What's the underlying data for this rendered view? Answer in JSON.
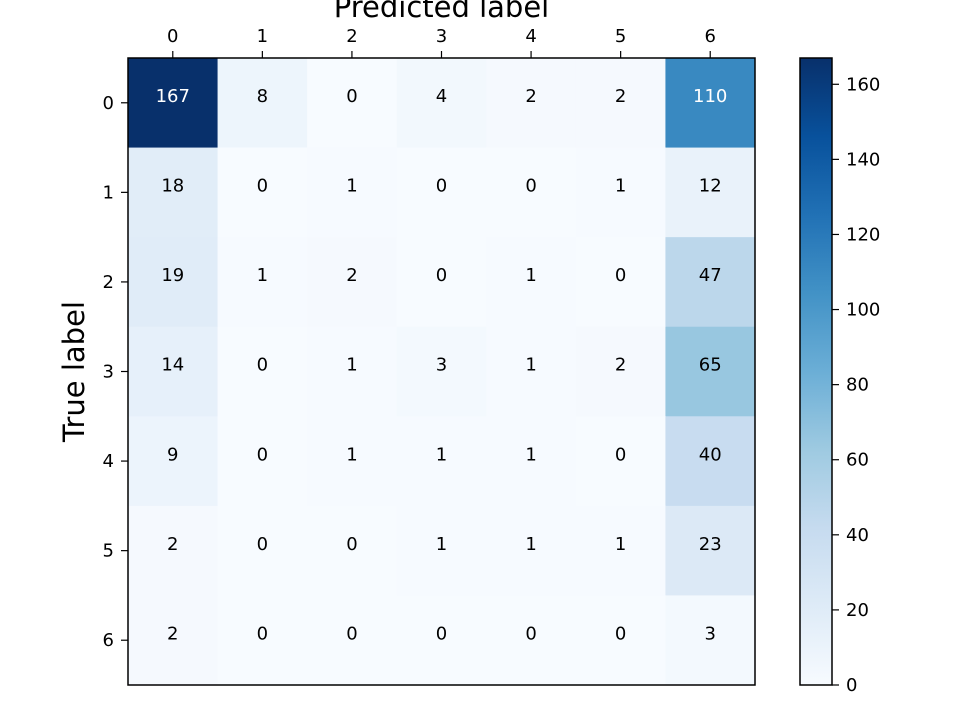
{
  "chart_data": {
    "type": "heatmap",
    "xlabel": "Predicted label",
    "ylabel": "True label",
    "x_categories": [
      "0",
      "1",
      "2",
      "3",
      "4",
      "5",
      "6"
    ],
    "y_categories": [
      "0",
      "1",
      "2",
      "3",
      "4",
      "5",
      "6"
    ],
    "values": [
      [
        167,
        8,
        0,
        4,
        2,
        2,
        110
      ],
      [
        18,
        0,
        1,
        0,
        0,
        1,
        12
      ],
      [
        19,
        1,
        2,
        0,
        1,
        0,
        47
      ],
      [
        14,
        0,
        1,
        3,
        1,
        2,
        65
      ],
      [
        9,
        0,
        1,
        1,
        1,
        0,
        40
      ],
      [
        2,
        0,
        0,
        1,
        1,
        1,
        23
      ],
      [
        2,
        0,
        0,
        0,
        0,
        0,
        3
      ]
    ],
    "colormap": "Blues",
    "colorbar": {
      "range": [
        0,
        167
      ],
      "ticks": [
        0,
        20,
        40,
        60,
        80,
        100,
        120,
        140,
        160
      ]
    },
    "x_ticks_position": "top",
    "grid": false
  }
}
